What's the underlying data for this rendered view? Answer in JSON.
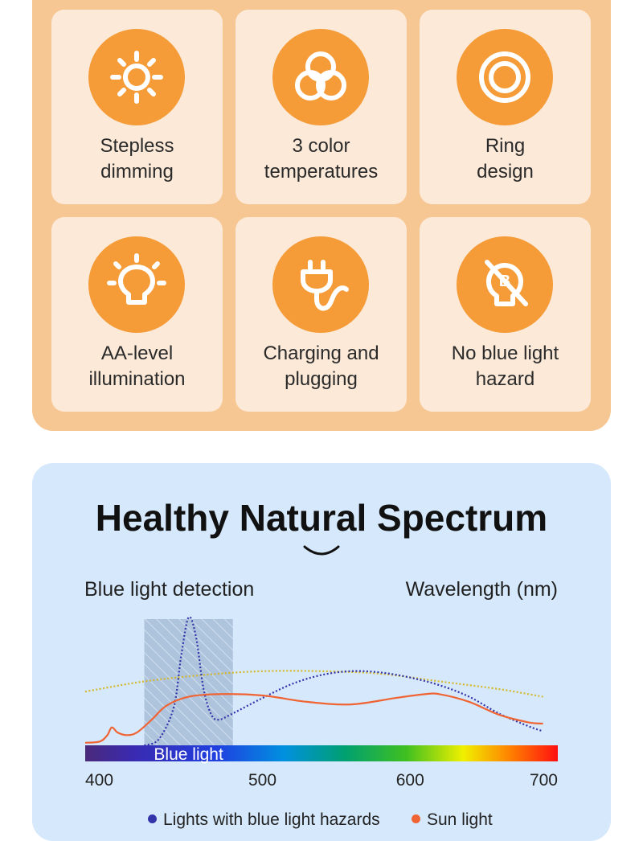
{
  "features": [
    {
      "icon": "sun-icon",
      "line1": "Stepless",
      "line2": "dimming"
    },
    {
      "icon": "three-circles-icon",
      "line1": "3 color",
      "line2": "temperatures"
    },
    {
      "icon": "ring-icon",
      "line1": "Ring",
      "line2": "design"
    },
    {
      "icon": "lightbulb-icon",
      "line1": "AA-level",
      "line2": "illumination"
    },
    {
      "icon": "plug-icon",
      "line1": "Charging and",
      "line2": "plugging"
    },
    {
      "icon": "no-blue-light-icon",
      "line1": "No blue light",
      "line2": "hazard"
    }
  ],
  "spectrum": {
    "title": "Healthy Natural Spectrum",
    "left_label": "Blue light detection",
    "right_label": "Wavelength (nm)"
  },
  "colors": {
    "accent_orange": "#f59b37",
    "panel_orange": "#f6c793",
    "card_bg": "#fce9d8",
    "panel_blue": "#d6e8fb",
    "hazard_series": "#3333aa",
    "sun_series": "#f06434",
    "reference_curve": "#d4b82a"
  },
  "chart_data": {
    "type": "line",
    "xlabel": "Wavelength (nm)",
    "xlim": [
      380,
      700
    ],
    "x_ticks": [
      400,
      500,
      600,
      700
    ],
    "ylim": [
      0,
      1
    ],
    "grid": false,
    "highlight_band": {
      "label": "Blue light",
      "x_range": [
        420,
        480
      ]
    },
    "series": [
      {
        "name": "Lights with blue light hazards",
        "color": "#3333aa",
        "style": "dotted",
        "x": [
          420,
          430,
          440,
          445,
          450,
          455,
          460,
          465,
          470,
          480,
          500,
          520,
          540,
          560,
          580,
          600,
          620,
          640,
          660,
          680,
          690
        ],
        "y": [
          0.0,
          0.05,
          0.3,
          0.7,
          1.0,
          0.85,
          0.45,
          0.25,
          0.2,
          0.25,
          0.37,
          0.48,
          0.55,
          0.58,
          0.57,
          0.53,
          0.47,
          0.38,
          0.25,
          0.15,
          0.11
        ]
      },
      {
        "name": "Sun light",
        "color": "#f06434",
        "style": "solid",
        "x": [
          380,
          390,
          395,
          398,
          402,
          408,
          415,
          425,
          435,
          450,
          470,
          500,
          530,
          560,
          590,
          610,
          620,
          640,
          660,
          680,
          690
        ],
        "y": [
          0.02,
          0.03,
          0.08,
          0.14,
          0.1,
          0.08,
          0.1,
          0.2,
          0.31,
          0.38,
          0.4,
          0.39,
          0.34,
          0.32,
          0.37,
          0.4,
          0.4,
          0.34,
          0.24,
          0.18,
          0.17
        ]
      },
      {
        "color": "#d4b82a",
        "style": "dotted",
        "x": [
          380,
          420,
          460,
          500,
          540,
          580,
          620,
          660,
          690
        ],
        "y": [
          0.42,
          0.5,
          0.55,
          0.58,
          0.58,
          0.56,
          0.5,
          0.44,
          0.38
        ]
      }
    ],
    "legend": {
      "placement": "bottom-center",
      "entries": [
        "Lights with blue light hazards",
        "Sun light"
      ]
    }
  }
}
